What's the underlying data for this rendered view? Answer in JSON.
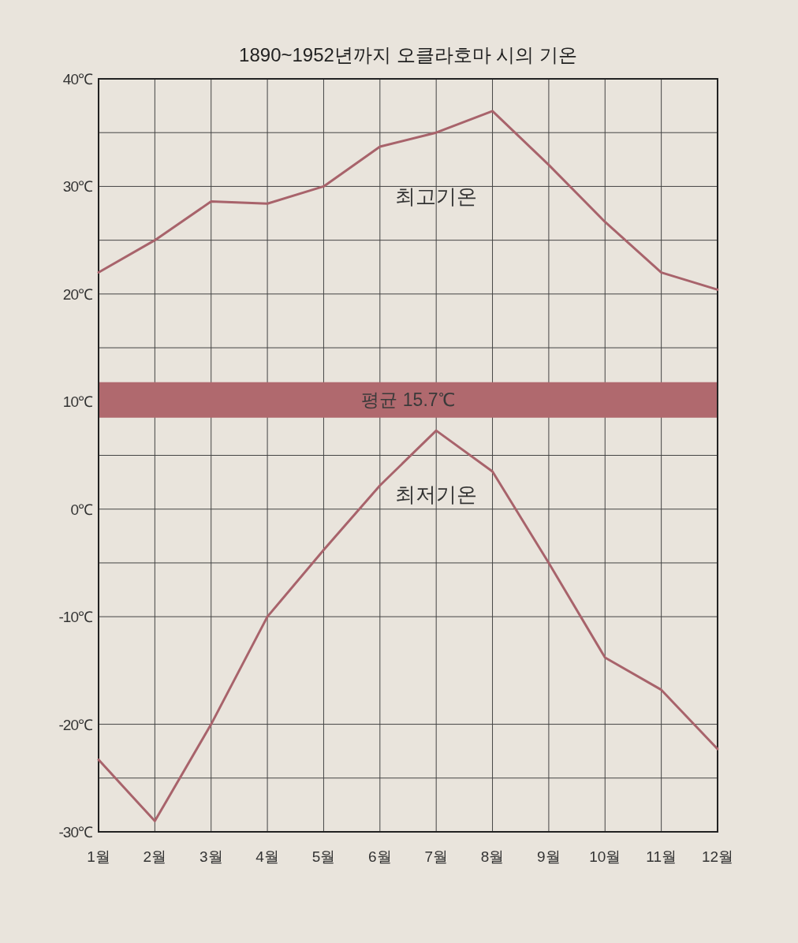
{
  "chart_data": {
    "type": "line",
    "title": "1890~1952년까지 오클라호마 시의 기온",
    "categories": [
      "1월",
      "2월",
      "3월",
      "4월",
      "5월",
      "6월",
      "7월",
      "8월",
      "9월",
      "10월",
      "11월",
      "12월"
    ],
    "series": [
      {
        "name": "최고기온",
        "color": "#a8636b",
        "values": [
          22,
          25,
          28.6,
          28.4,
          30,
          33.7,
          35,
          37,
          32,
          26.7,
          22,
          20.4
        ]
      },
      {
        "name": "최저기온",
        "color": "#a8636b",
        "values": [
          -23.3,
          -29,
          -20,
          -10,
          -3.8,
          2.2,
          7.3,
          3.5,
          -5,
          -13.8,
          -16.8,
          -22.3
        ]
      }
    ],
    "ylim": [
      -30,
      40
    ],
    "yticks": [
      {
        "value": -30,
        "label": "-30℃"
      },
      {
        "value": -25,
        "label": null
      },
      {
        "value": -20,
        "label": "-20℃"
      },
      {
        "value": -10,
        "label": "-10℃"
      },
      {
        "value": -5,
        "label": null
      },
      {
        "value": 0,
        "label": "0℃"
      },
      {
        "value": 5,
        "label": null
      },
      {
        "value": 10,
        "label": "10℃"
      },
      {
        "value": 15,
        "label": null
      },
      {
        "value": 20,
        "label": "20℃"
      },
      {
        "value": 25,
        "label": null
      },
      {
        "value": 30,
        "label": "30℃"
      },
      {
        "value": 35,
        "label": null
      },
      {
        "value": 40,
        "label": "40℃"
      }
    ],
    "grid": true,
    "bands": [
      {
        "axis": "y",
        "from": 8.5,
        "to": 11.8,
        "label": "평균 15.7℃",
        "color": "#b0696e"
      }
    ],
    "marker": "none",
    "line_style": "solid"
  }
}
